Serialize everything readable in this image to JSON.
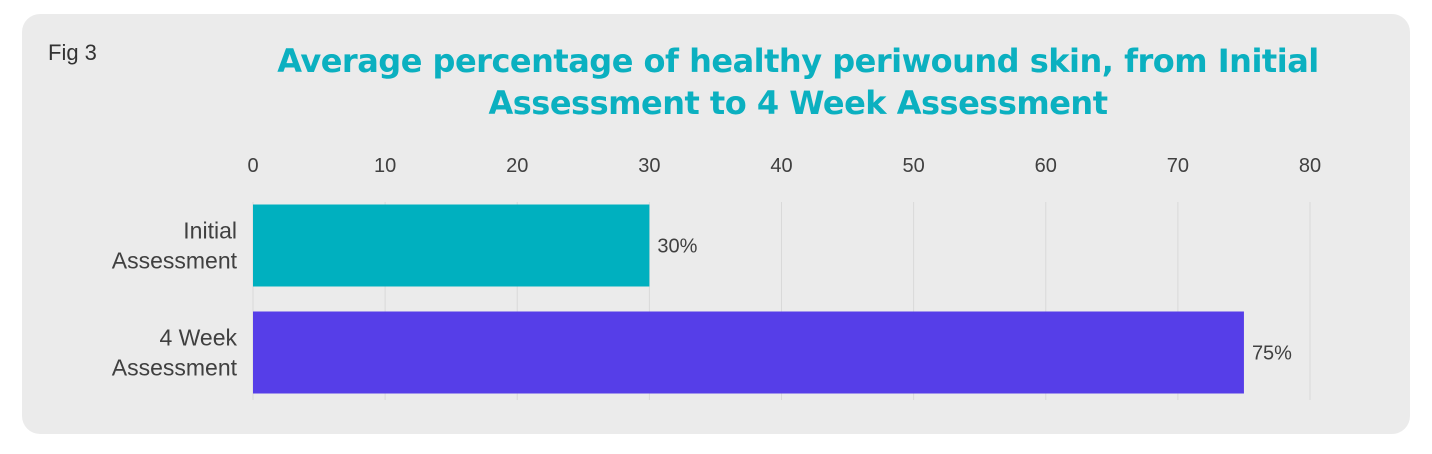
{
  "figure": {
    "label": "Fig 3"
  },
  "colors": {
    "title": "#0bb0c0",
    "panel_background": "#ebebeb",
    "gridline": "#d9d9d9",
    "text": "#404040"
  },
  "chart_data": {
    "type": "bar",
    "orientation": "horizontal",
    "title": "Average percentage of healthy periwound skin, from Initial Assessment to 4 Week Assessment",
    "xlabel": "",
    "ylabel": "",
    "xlim": [
      0,
      80
    ],
    "x_ticks": [
      0,
      10,
      20,
      30,
      40,
      50,
      60,
      70,
      80
    ],
    "x_axis_position": "top",
    "grid": "vertical",
    "categories": [
      [
        "Initial",
        "Assessment"
      ],
      [
        "4 Week",
        "Assessment"
      ]
    ],
    "values": [
      30,
      75
    ],
    "data_labels": [
      "30%",
      "75%"
    ],
    "bar_colors": [
      "#00b0bf",
      "#563ee8"
    ]
  }
}
